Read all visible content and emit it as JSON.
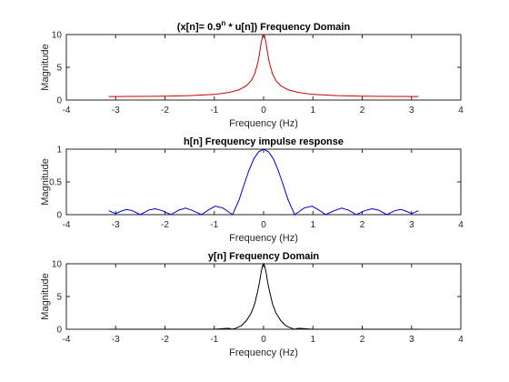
{
  "chart_data": [
    {
      "type": "line",
      "title_main": "(x[n]= 0.9",
      "title_sup": "n",
      "title_rest": " * u[n]) Frequency Domain",
      "xlabel": "Frequency (Hz)",
      "ylabel": "Magnitude",
      "xlim": [
        -4,
        4
      ],
      "ylim": [
        0,
        10
      ],
      "xticks": [
        "-4",
        "-3",
        "-2",
        "-1",
        "0",
        "1",
        "2",
        "3",
        "4"
      ],
      "yticks": [
        "0",
        "5",
        "10"
      ],
      "color": "#cc0000",
      "series": [
        {
          "x": [
            -3.14,
            -2.5,
            -2.0,
            -1.5,
            -1.0,
            -0.7,
            -0.5,
            -0.35,
            -0.25,
            -0.18,
            -0.12,
            -0.08,
            -0.05,
            -0.02,
            0,
            0.02,
            0.05,
            0.08,
            0.12,
            0.18,
            0.25,
            0.35,
            0.5,
            0.7,
            1.0,
            1.5,
            2.0,
            2.5,
            3.14
          ],
          "values": [
            0.53,
            0.55,
            0.59,
            0.67,
            0.86,
            1.16,
            1.56,
            2.18,
            2.98,
            4.02,
            5.6,
            7.2,
            8.7,
            9.8,
            10.0,
            9.8,
            8.7,
            7.2,
            5.6,
            4.02,
            2.98,
            2.18,
            1.56,
            1.16,
            0.86,
            0.67,
            0.59,
            0.55,
            0.53
          ]
        }
      ]
    },
    {
      "type": "line",
      "title": "h[n] Frequency impulse response",
      "xlabel": "Frequency (Hz)",
      "ylabel": "Magnitude",
      "xlim": [
        -4,
        4
      ],
      "ylim": [
        0,
        1
      ],
      "xticks": [
        "-4",
        "-3",
        "-2",
        "-1",
        "0",
        "1",
        "2",
        "3",
        "4"
      ],
      "yticks": [
        "0",
        "0.5",
        "1"
      ],
      "color": "#0000cc",
      "series": [
        {
          "x": [
            -3.14,
            -3.0,
            -2.9,
            -2.78,
            -2.66,
            -2.5,
            -2.33,
            -2.2,
            -2.05,
            -1.88,
            -1.72,
            -1.58,
            -1.43,
            -1.26,
            -1.1,
            -0.98,
            -0.82,
            -0.63,
            -0.5,
            -0.4,
            -0.3,
            -0.2,
            -0.1,
            0,
            0.1,
            0.2,
            0.3,
            0.4,
            0.5,
            0.63,
            0.82,
            0.98,
            1.1,
            1.26,
            1.43,
            1.58,
            1.72,
            1.88,
            2.05,
            2.2,
            2.33,
            2.5,
            2.66,
            2.78,
            2.9,
            3.0,
            3.14
          ],
          "values": [
            0.06,
            0.015,
            0.05,
            0.08,
            0.06,
            0.0,
            0.07,
            0.09,
            0.06,
            0.0,
            0.07,
            0.1,
            0.06,
            0.0,
            0.08,
            0.13,
            0.1,
            0.0,
            0.22,
            0.45,
            0.67,
            0.85,
            0.96,
            1.0,
            0.96,
            0.85,
            0.67,
            0.45,
            0.22,
            0.0,
            0.1,
            0.13,
            0.08,
            0.0,
            0.06,
            0.1,
            0.07,
            0.0,
            0.06,
            0.09,
            0.07,
            0.0,
            0.06,
            0.08,
            0.05,
            0.015,
            0.06
          ]
        }
      ]
    },
    {
      "type": "line",
      "title": "y[n] Frequency Domain",
      "xlabel": "Frequency (Hz)",
      "ylabel": "Magnitude",
      "xlim": [
        -4,
        4
      ],
      "ylim": [
        0,
        10
      ],
      "xticks": [
        "-4",
        "-3",
        "-2",
        "-1",
        "0",
        "1",
        "2",
        "3",
        "4"
      ],
      "yticks": [
        "0",
        "5",
        "10"
      ],
      "color": "#000000",
      "series": [
        {
          "x": [
            -3.14,
            -1.0,
            -0.9,
            -0.78,
            -0.7,
            -0.63,
            -0.55,
            -0.45,
            -0.35,
            -0.25,
            -0.18,
            -0.12,
            -0.08,
            -0.05,
            -0.02,
            0,
            0.02,
            0.05,
            0.08,
            0.12,
            0.18,
            0.25,
            0.35,
            0.45,
            0.55,
            0.63,
            0.7,
            0.78,
            0.9,
            1.0,
            3.14
          ],
          "values": [
            0.0,
            0.0,
            0.05,
            0.12,
            0.14,
            0.0,
            0.2,
            0.55,
            1.3,
            2.5,
            3.9,
            5.8,
            7.3,
            8.7,
            9.7,
            10.0,
            9.7,
            8.7,
            7.3,
            5.8,
            3.9,
            2.5,
            1.3,
            0.55,
            0.2,
            0.0,
            0.14,
            0.12,
            0.05,
            0.0,
            0.0
          ]
        }
      ]
    }
  ]
}
